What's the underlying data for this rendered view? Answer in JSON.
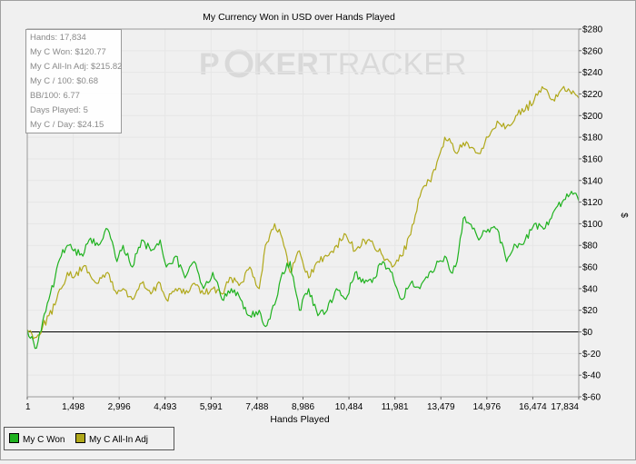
{
  "watermark": {
    "part1": "P",
    "part2": "KER",
    "part3": "TRACKER"
  },
  "stats": [
    "Hands: 17,834",
    "My C Won: $120.77",
    "My C All-In Adj: $215.82",
    "My C / 100: $0.68",
    "BB/100: 6.77",
    "Days Played: 5",
    "My C / Day: $24.15"
  ],
  "legend": [
    {
      "label": "My C Won"
    },
    {
      "label": "My C All-In Adj"
    }
  ],
  "chart_data": {
    "type": "line",
    "title": "My Currency Won in USD over Hands Played",
    "xlabel": "Hands Played",
    "ylabel": "$",
    "x_ticks": [
      "1",
      "1,498",
      "2,996",
      "4,493",
      "5,991",
      "7,488",
      "8,986",
      "10,484",
      "11,981",
      "13,479",
      "14,976",
      "16,474",
      "17,834"
    ],
    "y_ticks": [
      "$280",
      "$260",
      "$240",
      "$220",
      "$200",
      "$180",
      "$160",
      "$140",
      "$120",
      "$100",
      "$80",
      "$60",
      "$40",
      "$20",
      "$0",
      "$-20",
      "$-40",
      "$-60"
    ],
    "xlim": [
      1,
      17834
    ],
    "ylim": [
      -60,
      280
    ],
    "grid": true,
    "y_axis_side": "right",
    "zero_line": true,
    "colors": {
      "won": "#1fb21f",
      "adj": "#b0a81a",
      "grid": "#e6e6e6",
      "zero": "#000000"
    },
    "series": [
      {
        "name": "My C Won",
        "x": [
          1,
          300,
          500,
          700,
          900,
          1100,
          1300,
          1500,
          1800,
          2000,
          2300,
          2600,
          2900,
          3100,
          3400,
          3700,
          4000,
          4300,
          4500,
          4800,
          5100,
          5400,
          5700,
          6000,
          6300,
          6600,
          6900,
          7200,
          7500,
          7700,
          8000,
          8200,
          8500,
          8800,
          9100,
          9400,
          9700,
          10000,
          10300,
          10600,
          10900,
          11200,
          11500,
          11800,
          12100,
          12400,
          12700,
          13000,
          13200,
          13500,
          13700,
          13900,
          14100,
          14300,
          14600,
          14900,
          15200,
          15500,
          15800,
          16100,
          16400,
          16700,
          17000,
          17300,
          17600,
          17834
        ],
        "y": [
          2,
          -15,
          10,
          30,
          50,
          70,
          80,
          75,
          70,
          85,
          80,
          95,
          65,
          80,
          60,
          85,
          75,
          85,
          60,
          70,
          50,
          65,
          40,
          55,
          30,
          40,
          30,
          15,
          20,
          5,
          25,
          50,
          65,
          20,
          40,
          15,
          20,
          40,
          30,
          55,
          45,
          50,
          65,
          55,
          30,
          45,
          40,
          55,
          60,
          70,
          55,
          65,
          105,
          100,
          85,
          95,
          95,
          65,
          80,
          85,
          100,
          95,
          110,
          120,
          130,
          121
        ]
      },
      {
        "name": "My C All-In Adj",
        "x": [
          1,
          300,
          500,
          700,
          900,
          1100,
          1300,
          1500,
          1800,
          2000,
          2300,
          2600,
          2900,
          3100,
          3400,
          3700,
          4000,
          4300,
          4500,
          4800,
          5100,
          5400,
          5700,
          6000,
          6300,
          6600,
          6900,
          7200,
          7500,
          7700,
          8000,
          8200,
          8500,
          8800,
          9100,
          9400,
          9700,
          10000,
          10300,
          10600,
          10900,
          11200,
          11500,
          11800,
          12100,
          12400,
          12700,
          13000,
          13200,
          13500,
          13700,
          13900,
          14100,
          14300,
          14600,
          14900,
          15200,
          15500,
          15800,
          16100,
          16400,
          16700,
          17000,
          17300,
          17600,
          17834
        ],
        "y": [
          2,
          -5,
          5,
          15,
          25,
          40,
          55,
          50,
          60,
          55,
          45,
          55,
          35,
          40,
          30,
          45,
          35,
          45,
          30,
          40,
          35,
          45,
          35,
          40,
          35,
          50,
          45,
          60,
          40,
          80,
          100,
          90,
          55,
          75,
          50,
          65,
          70,
          80,
          90,
          75,
          85,
          80,
          70,
          60,
          70,
          90,
          125,
          140,
          150,
          180,
          175,
          165,
          175,
          170,
          165,
          180,
          195,
          190,
          200,
          205,
          215,
          225,
          215,
          225,
          220,
          216
        ]
      }
    ]
  }
}
